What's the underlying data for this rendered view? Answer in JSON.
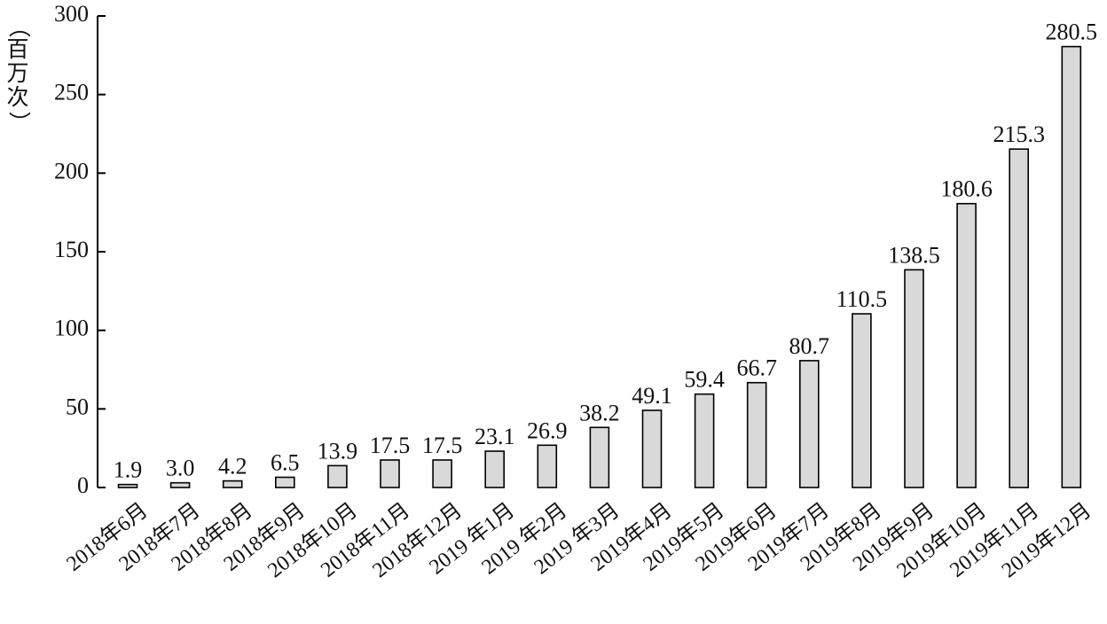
{
  "chart_data": {
    "type": "bar",
    "ylabel": [
      "（",
      "百",
      "万",
      "次",
      "）"
    ],
    "ylim": [
      0,
      300
    ],
    "yticks": [
      0,
      50,
      100,
      150,
      200,
      250,
      300
    ],
    "categories": [
      "2018年6月",
      "2018年7月",
      "2018年8月",
      "2018年9月",
      "2018年10月",
      "2018年11月",
      "2018年12月",
      "2019 年1月",
      "2019 年2月",
      "2019 年3月",
      "2019年4月",
      "2019年5月",
      "2019年6月",
      "2019年7月",
      "2019年8月",
      "2019年9月",
      "2019年10月",
      "2019年11月",
      "2019年12月"
    ],
    "values": [
      1.9,
      3.0,
      4.2,
      6.5,
      13.9,
      17.5,
      17.5,
      23.1,
      26.9,
      38.2,
      49.1,
      59.4,
      66.7,
      80.7,
      110.5,
      138.5,
      180.6,
      215.3,
      280.5
    ],
    "labels": [
      "1.9",
      "3.0",
      "4.2",
      "6.5",
      "13.9",
      "17.5",
      "17.5",
      "23.1",
      "26.9",
      "38.2",
      "49.1",
      "59.4",
      "66.7",
      "80.7",
      "110.5",
      "138.5",
      "180.6",
      "215.3",
      "280.5"
    ],
    "bar_color": "#d9d9d9",
    "bar_stroke": "#000000",
    "grid": false,
    "legend": "none"
  }
}
